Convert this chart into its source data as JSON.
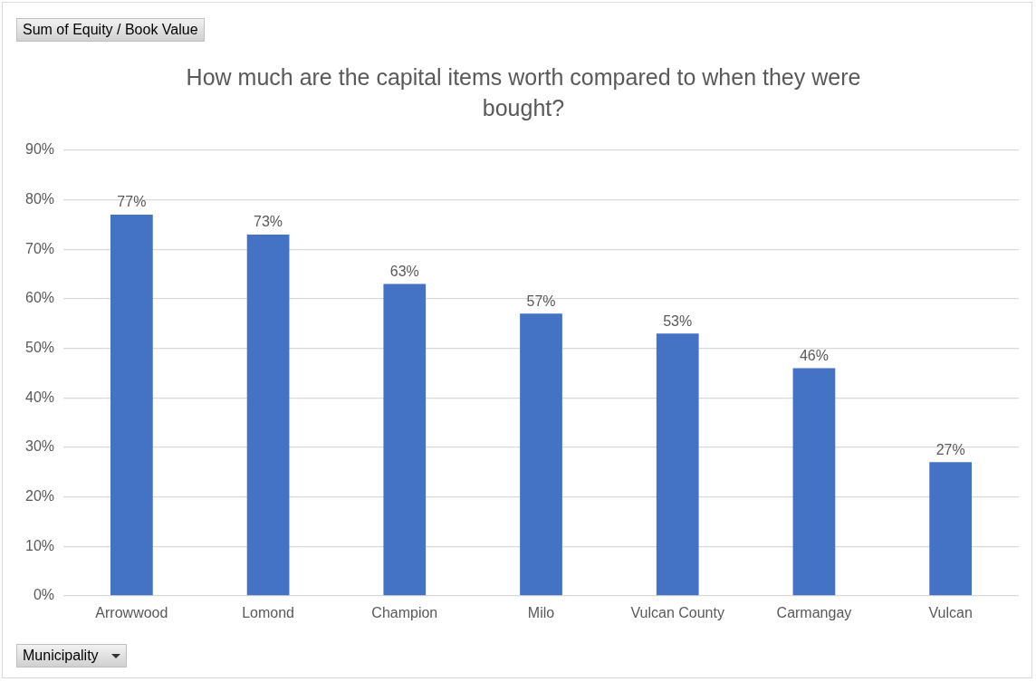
{
  "chart_data": {
    "type": "bar",
    "title": "How much are the capital items worth compared to when they were bought?",
    "annotations": [
      "Sum of Equity / Book Value"
    ],
    "xlabel": "Municipality",
    "categories": [
      "Arrowwood",
      "Lomond",
      "Champion",
      "Milo",
      "Vulcan County",
      "Carmangay",
      "Vulcan"
    ],
    "values": [
      77,
      73,
      63,
      57,
      53,
      46,
      27
    ],
    "value_labels": [
      "77%",
      "73%",
      "63%",
      "57%",
      "53%",
      "46%",
      "27%"
    ],
    "color": "#4472c4",
    "ylim": [
      0,
      90
    ],
    "yticks": [
      {
        "value": 0,
        "label": "0%"
      },
      {
        "value": 10,
        "label": "10%"
      },
      {
        "value": 20,
        "label": "20%"
      },
      {
        "value": 30,
        "label": "30%"
      },
      {
        "value": 40,
        "label": "40%"
      },
      {
        "value": 50,
        "label": "50%"
      },
      {
        "value": 60,
        "label": "60%"
      },
      {
        "value": 70,
        "label": "70%"
      },
      {
        "value": 80,
        "label": "80%"
      },
      {
        "value": 90,
        "label": "90%"
      }
    ],
    "grid": "y",
    "legend": false
  }
}
